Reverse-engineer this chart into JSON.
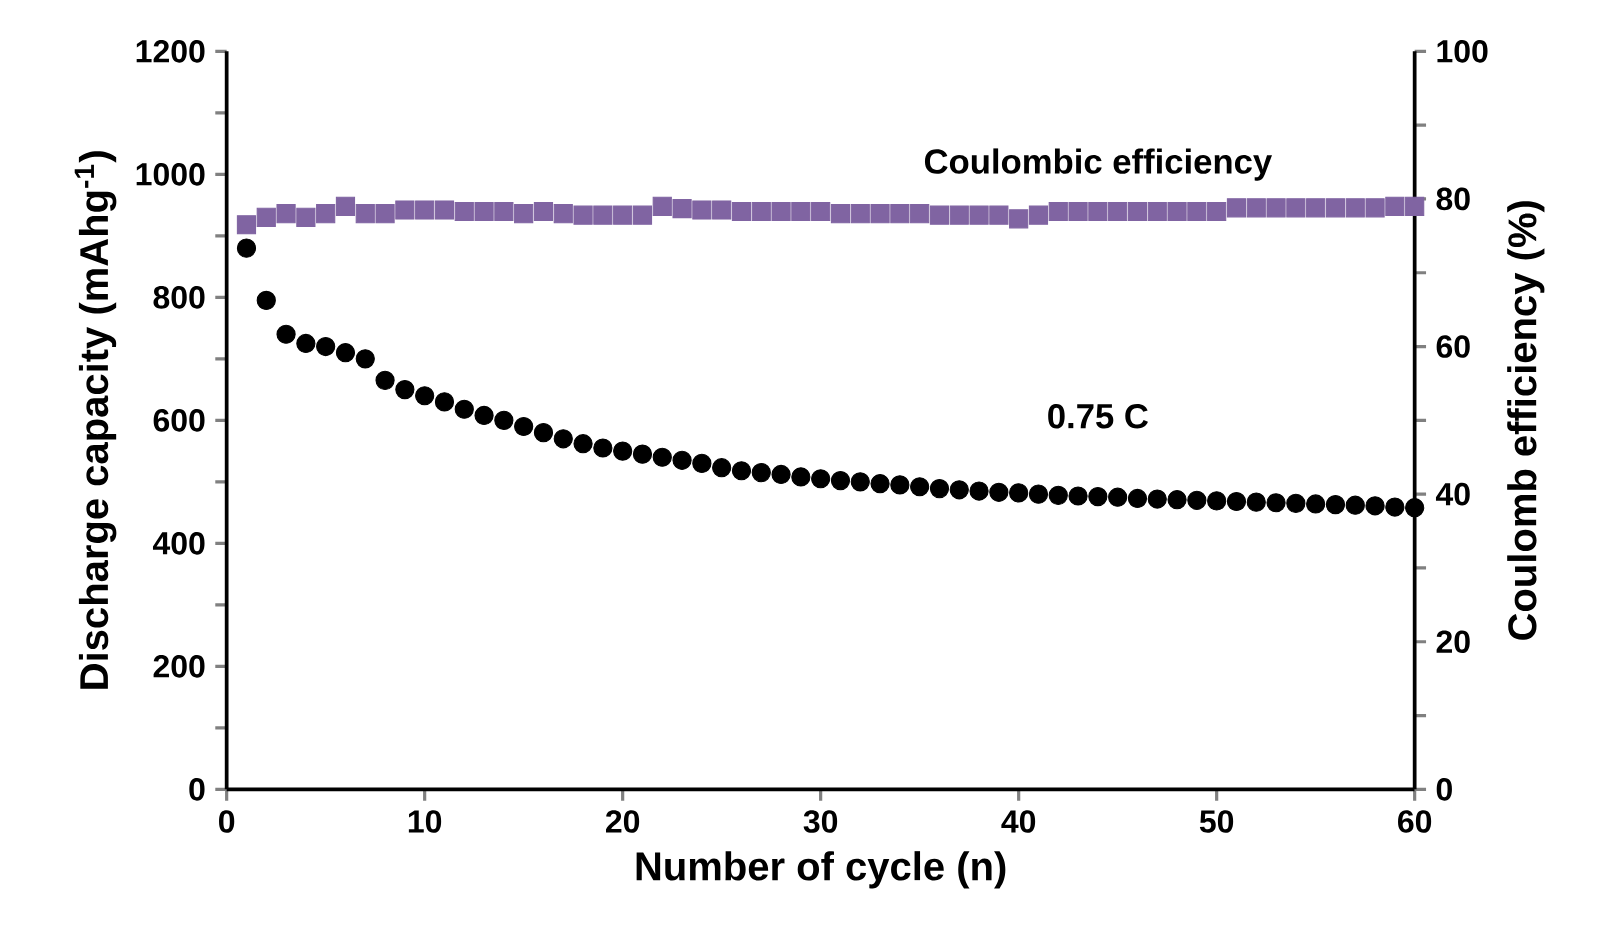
{
  "chart_data": {
    "type": "scatter",
    "xlabel": "Number of cycle (n)",
    "ylabel": "Discharge capacity (mAhg$^{-1}$)",
    "y2label": "Coulomb efficiency (%)",
    "x": [
      1,
      2,
      3,
      4,
      5,
      6,
      7,
      8,
      9,
      10,
      11,
      12,
      13,
      14,
      15,
      16,
      17,
      18,
      19,
      20,
      21,
      22,
      23,
      24,
      25,
      26,
      27,
      28,
      29,
      30,
      31,
      32,
      33,
      34,
      35,
      36,
      37,
      38,
      39,
      40,
      41,
      42,
      43,
      44,
      45,
      46,
      47,
      48,
      49,
      50,
      51,
      52,
      53,
      54,
      55,
      56,
      57,
      58,
      59,
      60
    ],
    "series": [
      {
        "name": "0.75 C",
        "color": "#000000",
        "marker": "circle",
        "values": [
          880,
          795,
          740,
          725,
          720,
          710,
          700,
          665,
          650,
          640,
          630,
          618,
          608,
          600,
          590,
          580,
          570,
          562,
          555,
          550,
          545,
          540,
          535,
          530,
          523,
          518,
          515,
          512,
          508,
          505,
          502,
          500,
          497,
          495,
          492,
          489,
          487,
          485,
          483,
          482,
          480,
          478,
          477,
          476,
          475,
          473,
          472,
          471,
          470,
          469,
          468,
          467,
          466,
          465,
          464,
          463,
          462,
          461,
          459,
          458
        ]
      },
      {
        "name": "Coulombic efficiency",
        "color": "#8064a2",
        "marker": "square",
        "axis": "y2",
        "values": [
          76.5,
          77.5,
          78,
          77.5,
          78,
          79,
          78,
          78,
          78.5,
          78.5,
          78.5,
          78.3,
          78.3,
          78.3,
          78,
          78.3,
          78,
          77.8,
          77.8,
          77.8,
          77.8,
          79,
          78.7,
          78.5,
          78.5,
          78.3,
          78.3,
          78.3,
          78.3,
          78.3,
          78,
          78,
          78,
          78,
          78,
          77.8,
          77.8,
          77.8,
          77.8,
          77.3,
          77.8,
          78.3,
          78.3,
          78.3,
          78.3,
          78.3,
          78.3,
          78.3,
          78.3,
          78.3,
          78.8,
          78.8,
          78.8,
          78.8,
          78.8,
          78.8,
          78.8,
          78.8,
          79,
          79
        ]
      }
    ],
    "xlim": [
      0,
      60
    ],
    "xticks": [
      0,
      10,
      20,
      30,
      40,
      50,
      60
    ],
    "ylim": [
      0,
      1200
    ],
    "yticks": [
      0,
      {
        "value": 100,
        "label": null
      },
      200,
      {
        "value": 300,
        "label": null
      },
      400,
      {
        "value": 500,
        "label": null
      },
      600,
      {
        "value": 700,
        "label": null
      },
      800,
      {
        "value": 900,
        "label": null
      },
      1000,
      {
        "value": 1100,
        "label": null
      },
      1200
    ],
    "y2lim": [
      0,
      100
    ],
    "y2ticks": [
      0,
      {
        "value": 10,
        "label": null
      },
      20,
      {
        "value": 30,
        "label": null
      },
      40,
      {
        "value": 50,
        "label": null
      },
      60,
      {
        "value": 70,
        "label": null
      },
      80,
      {
        "value": 90,
        "label": null
      },
      100
    ],
    "grid": false,
    "legend": false
  }
}
